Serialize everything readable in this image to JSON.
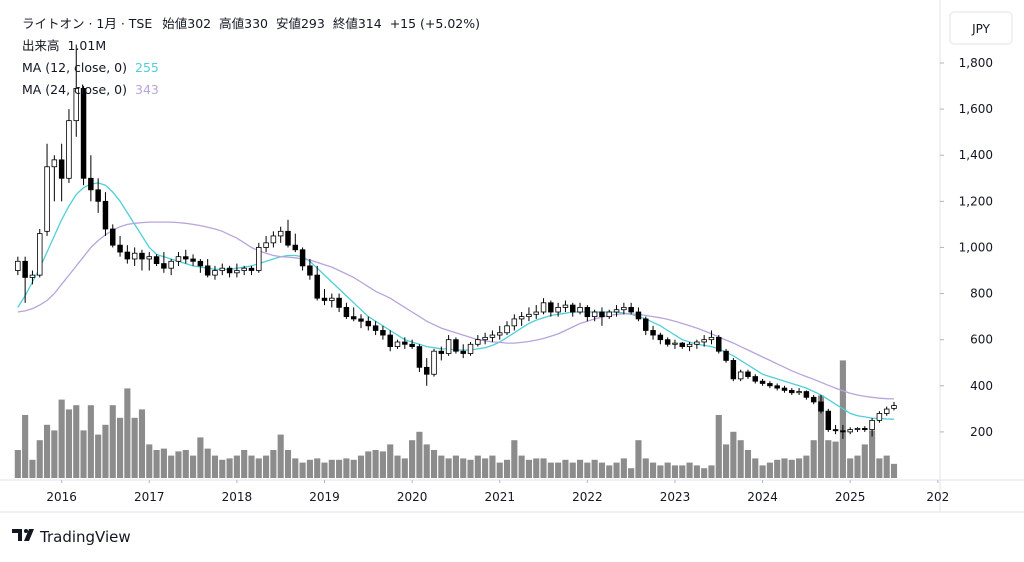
{
  "chart_data": {
    "type": "candlestick",
    "title": "ライトオン · 1月 · TSE",
    "currency": "JPY",
    "labels": {
      "open": "始値",
      "high": "高値",
      "low": "安値",
      "close": "終値",
      "volume": "出来高"
    },
    "change": "+15 (+5.02%)",
    "volume_value_label": "1.01M",
    "footer": "TradingView",
    "up_color": "#ffffff",
    "down_color": "#000000",
    "border_color": "#000000",
    "volume_color": "#808080",
    "grid": false,
    "ylim": [
      0,
      2030
    ],
    "yticks": [
      200,
      400,
      600,
      800,
      {
        "value": 1000,
        "label": "1,000"
      },
      {
        "value": 1200,
        "label": "1,200"
      },
      {
        "value": 1400,
        "label": "1,400"
      },
      {
        "value": 1600,
        "label": "1,600"
      },
      {
        "value": 1800,
        "label": "1,800"
      }
    ],
    "xlim": [
      -0.8,
      126.3
    ],
    "xticks": [
      {
        "value": 6,
        "label": "2016"
      },
      {
        "value": 18,
        "label": "2017"
      },
      {
        "value": 30,
        "label": "2018"
      },
      {
        "value": 42,
        "label": "2019"
      },
      {
        "value": 54,
        "label": "2020"
      },
      {
        "value": 66,
        "label": "2021"
      },
      {
        "value": 78,
        "label": "2022"
      },
      {
        "value": 90,
        "label": "2023"
      },
      {
        "value": 102,
        "label": "2024"
      },
      {
        "value": 114,
        "label": "2025"
      },
      {
        "value": 126,
        "label": "202"
      }
    ],
    "open": [
      900,
      940,
      870,
      880,
      1070,
      1350,
      1380,
      1300,
      1550,
      1690,
      1300,
      1250,
      1200,
      1080,
      1010,
      980,
      950,
      975,
      950,
      960,
      930,
      910,
      940,
      960,
      950,
      940,
      920,
      880,
      900,
      910,
      890,
      900,
      910,
      900,
      1000,
      1020,
      1050,
      1070,
      1010,
      990,
      920,
      880,
      780,
      770,
      780,
      740,
      700,
      690,
      680,
      660,
      640,
      620,
      570,
      590,
      580,
      570,
      480,
      450,
      550,
      540,
      600,
      550,
      540,
      580,
      600,
      610,
      620,
      630,
      660,
      690,
      700,
      710,
      720,
      760,
      720,
      740,
      750,
      720,
      740,
      700,
      720,
      700,
      720,
      730,
      740,
      720,
      690,
      640,
      620,
      600,
      580,
      585,
      570,
      580,
      590,
      600,
      610,
      550,
      510,
      430,
      460,
      440,
      420,
      410,
      400,
      390,
      380,
      370,
      375,
      350,
      330,
      290,
      210,
      205,
      200,
      210,
      215,
      210,
      250,
      280,
      302
    ],
    "high": [
      960,
      960,
      900,
      1080,
      1450,
      1400,
      1450,
      1600,
      1880,
      1700,
      1400,
      1300,
      1240,
      1100,
      1050,
      1010,
      1000,
      990,
      980,
      970,
      980,
      950,
      980,
      990,
      970,
      950,
      950,
      920,
      930,
      920,
      930,
      920,
      920,
      1020,
      1050,
      1070,
      1090,
      1120,
      1060,
      1000,
      950,
      920,
      820,
      800,
      800,
      760,
      740,
      710,
      700,
      680,
      660,
      640,
      600,
      610,
      600,
      580,
      520,
      560,
      570,
      620,
      610,
      580,
      590,
      620,
      630,
      640,
      660,
      680,
      710,
      720,
      740,
      750,
      780,
      770,
      760,
      770,
      760,
      760,
      750,
      730,
      740,
      730,
      750,
      760,
      760,
      740,
      700,
      660,
      630,
      610,
      600,
      590,
      590,
      600,
      620,
      640,
      620,
      560,
      520,
      470,
      470,
      450,
      430,
      420,
      410,
      400,
      390,
      390,
      380,
      360,
      360,
      300,
      230,
      230,
      220,
      220,
      225,
      260,
      290,
      310,
      330
    ],
    "low": [
      880,
      760,
      840,
      870,
      1050,
      1200,
      1200,
      1280,
      1480,
      1270,
      1200,
      1150,
      1050,
      1000,
      960,
      930,
      920,
      900,
      900,
      920,
      890,
      880,
      920,
      930,
      920,
      890,
      870,
      860,
      880,
      870,
      870,
      880,
      880,
      890,
      980,
      1000,
      1020,
      1000,
      980,
      900,
      860,
      770,
      750,
      740,
      720,
      690,
      680,
      650,
      640,
      620,
      600,
      550,
      560,
      560,
      560,
      460,
      400,
      440,
      510,
      530,
      540,
      520,
      530,
      570,
      580,
      590,
      600,
      620,
      640,
      660,
      680,
      690,
      710,
      700,
      700,
      720,
      700,
      710,
      680,
      680,
      660,
      690,
      700,
      710,
      710,
      680,
      620,
      600,
      580,
      570,
      560,
      560,
      550,
      560,
      570,
      580,
      540,
      500,
      420,
      420,
      430,
      410,
      400,
      390,
      380,
      370,
      360,
      360,
      340,
      320,
      280,
      200,
      190,
      170,
      190,
      200,
      200,
      180,
      240,
      270,
      293
    ],
    "close": [
      940,
      870,
      880,
      1060,
      1350,
      1380,
      1300,
      1550,
      1690,
      1300,
      1250,
      1200,
      1080,
      1010,
      980,
      950,
      975,
      950,
      960,
      930,
      910,
      940,
      960,
      950,
      940,
      920,
      880,
      900,
      910,
      890,
      900,
      910,
      900,
      1000,
      1020,
      1050,
      1070,
      1010,
      990,
      920,
      880,
      780,
      770,
      780,
      740,
      700,
      690,
      680,
      660,
      640,
      620,
      570,
      590,
      580,
      570,
      480,
      450,
      550,
      540,
      600,
      550,
      540,
      580,
      600,
      610,
      620,
      630,
      660,
      690,
      700,
      710,
      720,
      760,
      720,
      740,
      750,
      720,
      740,
      700,
      720,
      700,
      720,
      730,
      740,
      720,
      690,
      640,
      620,
      600,
      580,
      585,
      570,
      580,
      590,
      600,
      610,
      550,
      510,
      430,
      460,
      440,
      420,
      410,
      400,
      390,
      380,
      370,
      375,
      350,
      330,
      290,
      210,
      205,
      200,
      210,
      215,
      210,
      250,
      280,
      299,
      314
    ],
    "volume": [
      2.0,
      4.5,
      1.3,
      2.7,
      3.8,
      3.4,
      5.6,
      4.9,
      5.2,
      3.4,
      5.2,
      3.1,
      3.8,
      5.2,
      4.3,
      6.4,
      4.3,
      4.9,
      2.4,
      2.0,
      2.1,
      1.6,
      1.9,
      2.0,
      1.6,
      2.9,
      2.1,
      1.6,
      1.3,
      1.4,
      1.6,
      2.0,
      1.6,
      1.4,
      1.6,
      2.0,
      3.1,
      2.0,
      1.4,
      1.1,
      1.3,
      1.4,
      1.1,
      1.3,
      1.3,
      1.4,
      1.3,
      1.6,
      1.9,
      2.0,
      1.9,
      2.4,
      1.6,
      1.4,
      2.7,
      3.3,
      2.4,
      2.0,
      1.6,
      1.4,
      1.6,
      1.4,
      1.3,
      1.6,
      1.4,
      1.6,
      1.1,
      1.3,
      2.7,
      1.6,
      1.3,
      1.4,
      1.4,
      1.1,
      1.1,
      1.3,
      1.1,
      1.3,
      1.1,
      1.3,
      1.1,
      0.9,
      1.1,
      1.4,
      0.7,
      2.7,
      1.4,
      1.1,
      0.9,
      1.1,
      0.9,
      0.9,
      1.1,
      0.9,
      0.7,
      0.9,
      4.5,
      2.4,
      3.3,
      2.7,
      2.0,
      1.4,
      0.9,
      1.1,
      1.3,
      1.4,
      1.3,
      1.4,
      1.6,
      2.7,
      5.9,
      2.7,
      2.6,
      8.4,
      1.4,
      1.6,
      2.4,
      3.4,
      1.4,
      1.6,
      1.01
    ],
    "series": [
      {
        "name": "MA (12, close, 0)",
        "color": "#4fcfd9",
        "values": [
          740,
          790,
          850,
          910,
          980,
          1050,
          1120,
          1180,
          1230,
          1260,
          1275,
          1280,
          1270,
          1240,
          1200,
          1150,
          1100,
          1050,
          1000,
          970,
          960,
          950,
          940,
          930,
          920,
          915,
          910,
          905,
          905,
          905,
          910,
          915,
          920,
          930,
          940,
          950,
          960,
          965,
          965,
          960,
          940,
          910,
          880,
          850,
          820,
          790,
          760,
          730,
          700,
          680,
          660,
          640,
          620,
          600,
          590,
          580,
          570,
          565,
          560,
          560,
          555,
          555,
          555,
          560,
          565,
          575,
          590,
          610,
          630,
          650,
          670,
          685,
          695,
          705,
          710,
          715,
          720,
          720,
          720,
          720,
          720,
          720,
          720,
          715,
          710,
          700,
          690,
          675,
          660,
          640,
          620,
          600,
          590,
          580,
          575,
          570,
          560,
          545,
          530,
          510,
          490,
          470,
          450,
          440,
          430,
          420,
          410,
          400,
          390,
          375,
          360,
          340,
          320,
          300,
          280,
          270,
          265,
          260,
          258,
          256,
          255
        ]
      },
      {
        "name": "MA (24, close, 0)",
        "color": "#b8a4dc",
        "values": [
          720,
          725,
          735,
          750,
          770,
          800,
          840,
          880,
          920,
          960,
          1000,
          1030,
          1055,
          1075,
          1090,
          1100,
          1105,
          1108,
          1110,
          1110,
          1110,
          1110,
          1108,
          1105,
          1100,
          1095,
          1088,
          1080,
          1070,
          1055,
          1040,
          1020,
          1000,
          985,
          975,
          965,
          960,
          958,
          955,
          950,
          945,
          935,
          925,
          915,
          900,
          885,
          870,
          850,
          830,
          810,
          795,
          780,
          760,
          740,
          720,
          700,
          680,
          665,
          650,
          640,
          630,
          620,
          610,
          600,
          595,
          590,
          588,
          585,
          585,
          588,
          592,
          598,
          605,
          615,
          625,
          640,
          655,
          670,
          680,
          690,
          698,
          705,
          710,
          712,
          712,
          710,
          705,
          700,
          695,
          688,
          680,
          670,
          660,
          650,
          638,
          625,
          612,
          598,
          585,
          570,
          555,
          540,
          525,
          510,
          495,
          480,
          465,
          452,
          440,
          428,
          415,
          402,
          390,
          378,
          368,
          360,
          354,
          350,
          346,
          344,
          343
        ]
      }
    ]
  }
}
